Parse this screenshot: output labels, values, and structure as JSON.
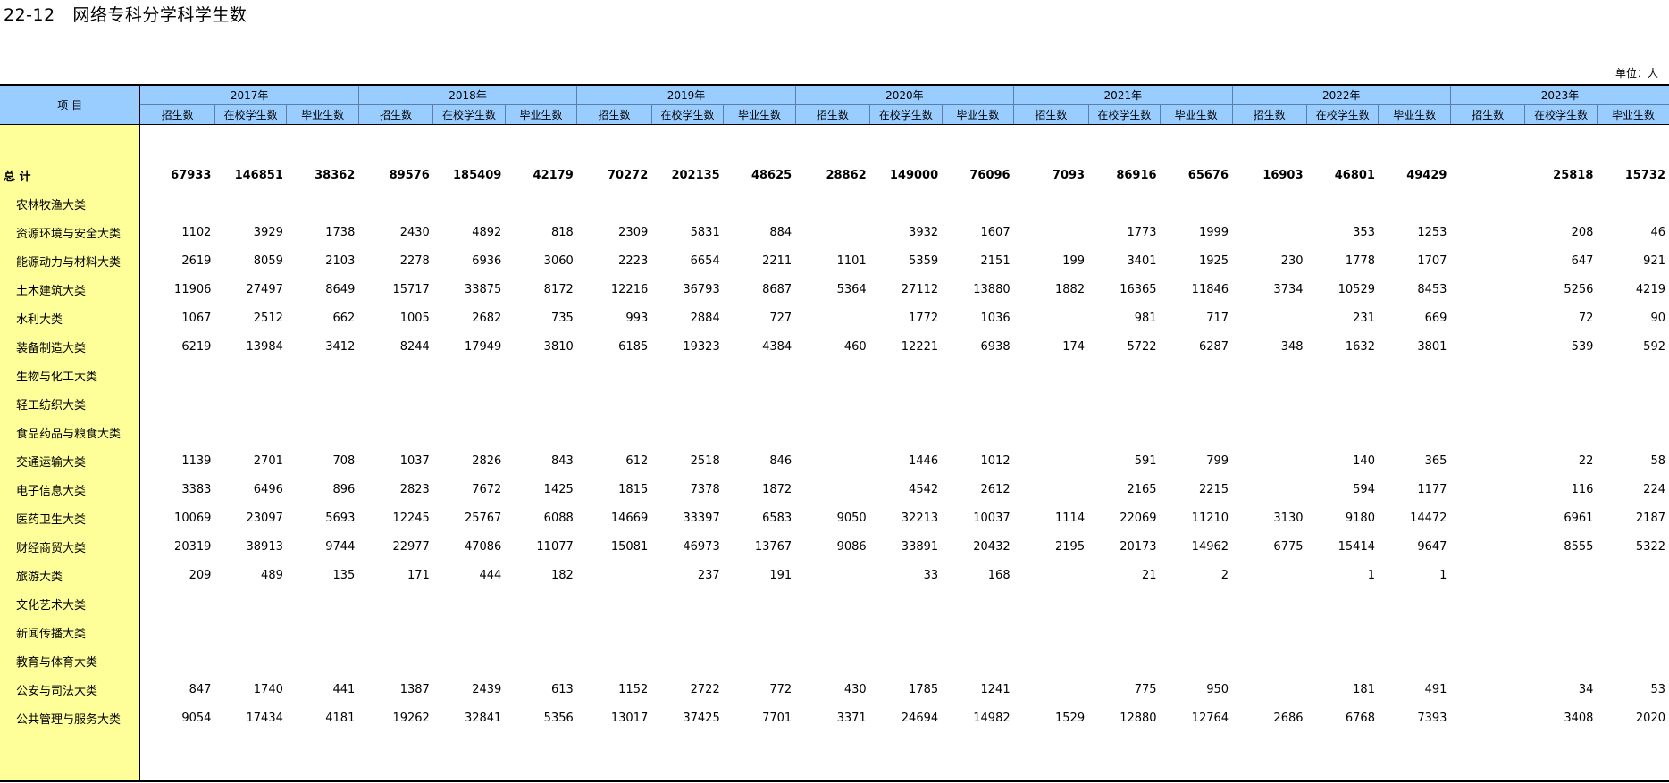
{
  "title": "22-12   网络专科分学科学生数",
  "unit": "单位：人",
  "header": {
    "item_label": "项    目",
    "years": [
      "2017年",
      "2018年",
      "2019年",
      "2020年",
      "2021年",
      "2022年",
      "2023年"
    ],
    "subcols": [
      "招生数",
      "在校学生数",
      "毕业生数"
    ]
  },
  "total": {
    "label": "总    计",
    "values": [
      "67933",
      "146851",
      "38362",
      "89576",
      "185409",
      "42179",
      "70272",
      "202135",
      "48625",
      "28862",
      "149000",
      "76096",
      "7093",
      "86916",
      "65676",
      "16903",
      "46801",
      "49429",
      "",
      "25818",
      "15732"
    ]
  },
  "rows": [
    {
      "label": "农林牧渔大类",
      "values": [
        "",
        "",
        "",
        "",
        "",
        "",
        "",
        "",
        "",
        "",
        "",
        "",
        "",
        "",
        "",
        "",
        "",
        "",
        "",
        "",
        ""
      ]
    },
    {
      "label": "资源环境与安全大类",
      "values": [
        "1102",
        "3929",
        "1738",
        "2430",
        "4892",
        "818",
        "2309",
        "5831",
        "884",
        "",
        "3932",
        "1607",
        "",
        "1773",
        "1999",
        "",
        "353",
        "1253",
        "",
        "208",
        "46"
      ]
    },
    {
      "label": "能源动力与材料大类",
      "values": [
        "2619",
        "8059",
        "2103",
        "2278",
        "6936",
        "3060",
        "2223",
        "6654",
        "2211",
        "1101",
        "5359",
        "2151",
        "199",
        "3401",
        "1925",
        "230",
        "1778",
        "1707",
        "",
        "647",
        "921"
      ]
    },
    {
      "label": "土木建筑大类",
      "values": [
        "11906",
        "27497",
        "8649",
        "15717",
        "33875",
        "8172",
        "12216",
        "36793",
        "8687",
        "5364",
        "27112",
        "13880",
        "1882",
        "16365",
        "11846",
        "3734",
        "10529",
        "8453",
        "",
        "5256",
        "4219"
      ]
    },
    {
      "label": "水利大类",
      "values": [
        "1067",
        "2512",
        "662",
        "1005",
        "2682",
        "735",
        "993",
        "2884",
        "727",
        "",
        "1772",
        "1036",
        "",
        "981",
        "717",
        "",
        "231",
        "669",
        "",
        "72",
        "90"
      ]
    },
    {
      "label": "装备制造大类",
      "values": [
        "6219",
        "13984",
        "3412",
        "8244",
        "17949",
        "3810",
        "6185",
        "19323",
        "4384",
        "460",
        "12221",
        "6938",
        "174",
        "5722",
        "6287",
        "348",
        "1632",
        "3801",
        "",
        "539",
        "592"
      ]
    },
    {
      "label": "生物与化工大类",
      "values": [
        "",
        "",
        "",
        "",
        "",
        "",
        "",
        "",
        "",
        "",
        "",
        "",
        "",
        "",
        "",
        "",
        "",
        "",
        "",
        "",
        ""
      ]
    },
    {
      "label": "轻工纺织大类",
      "values": [
        "",
        "",
        "",
        "",
        "",
        "",
        "",
        "",
        "",
        "",
        "",
        "",
        "",
        "",
        "",
        "",
        "",
        "",
        "",
        "",
        ""
      ]
    },
    {
      "label": "食品药品与粮食大类",
      "values": [
        "",
        "",
        "",
        "",
        "",
        "",
        "",
        "",
        "",
        "",
        "",
        "",
        "",
        "",
        "",
        "",
        "",
        "",
        "",
        "",
        ""
      ]
    },
    {
      "label": "交通运输大类",
      "values": [
        "1139",
        "2701",
        "708",
        "1037",
        "2826",
        "843",
        "612",
        "2518",
        "846",
        "",
        "1446",
        "1012",
        "",
        "591",
        "799",
        "",
        "140",
        "365",
        "",
        "22",
        "58"
      ]
    },
    {
      "label": "电子信息大类",
      "values": [
        "3383",
        "6496",
        "896",
        "2823",
        "7672",
        "1425",
        "1815",
        "7378",
        "1872",
        "",
        "4542",
        "2612",
        "",
        "2165",
        "2215",
        "",
        "594",
        "1177",
        "",
        "116",
        "224"
      ]
    },
    {
      "label": "医药卫生大类",
      "values": [
        "10069",
        "23097",
        "5693",
        "12245",
        "25767",
        "6088",
        "14669",
        "33397",
        "6583",
        "9050",
        "32213",
        "10037",
        "1114",
        "22069",
        "11210",
        "3130",
        "9180",
        "14472",
        "",
        "6961",
        "2187"
      ]
    },
    {
      "label": "财经商贸大类",
      "values": [
        "20319",
        "38913",
        "9744",
        "22977",
        "47086",
        "11077",
        "15081",
        "46973",
        "13767",
        "9086",
        "33891",
        "20432",
        "2195",
        "20173",
        "14962",
        "6775",
        "15414",
        "9647",
        "",
        "8555",
        "5322"
      ]
    },
    {
      "label": "旅游大类",
      "values": [
        "209",
        "489",
        "135",
        "171",
        "444",
        "182",
        "",
        "237",
        "191",
        "",
        "33",
        "168",
        "",
        "21",
        "2",
        "",
        "1",
        "1",
        "",
        "",
        ""
      ]
    },
    {
      "label": "文化艺术大类",
      "values": [
        "",
        "",
        "",
        "",
        "",
        "",
        "",
        "",
        "",
        "",
        "",
        "",
        "",
        "",
        "",
        "",
        "",
        "",
        "",
        "",
        ""
      ]
    },
    {
      "label": "新闻传播大类",
      "values": [
        "",
        "",
        "",
        "",
        "",
        "",
        "",
        "",
        "",
        "",
        "",
        "",
        "",
        "",
        "",
        "",
        "",
        "",
        "",
        "",
        ""
      ]
    },
    {
      "label": "教育与体育大类",
      "values": [
        "",
        "",
        "",
        "",
        "",
        "",
        "",
        "",
        "",
        "",
        "",
        "",
        "",
        "",
        "",
        "",
        "",
        "",
        "",
        "",
        ""
      ]
    },
    {
      "label": "公安与司法大类",
      "values": [
        "847",
        "1740",
        "441",
        "1387",
        "2439",
        "613",
        "1152",
        "2722",
        "772",
        "430",
        "1785",
        "1241",
        "",
        "775",
        "950",
        "",
        "181",
        "491",
        "",
        "34",
        "53"
      ]
    },
    {
      "label": "公共管理与服务大类",
      "values": [
        "9054",
        "17434",
        "4181",
        "19262",
        "32841",
        "5356",
        "13017",
        "37425",
        "7701",
        "3371",
        "24694",
        "14982",
        "1529",
        "12880",
        "12764",
        "2686",
        "6768",
        "7393",
        "",
        "3408",
        "2020"
      ]
    }
  ]
}
